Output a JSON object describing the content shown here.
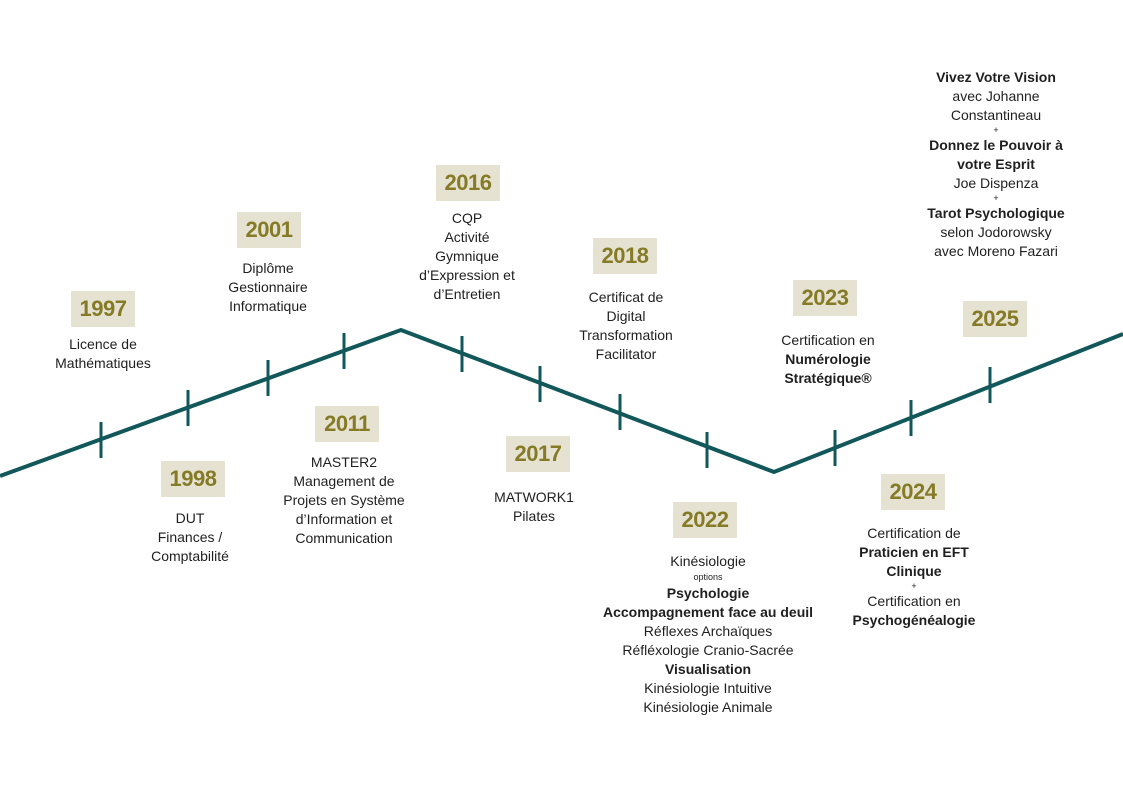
{
  "line_color": "#12575a",
  "year_bg": "#e6e2d2",
  "year_color": "#857b27",
  "entries": [
    {
      "year": "1997",
      "lines": [
        {
          "t": "Licence de"
        },
        {
          "t": "Mathématiques"
        }
      ]
    },
    {
      "year": "1998",
      "lines": [
        {
          "t": "DUT"
        },
        {
          "t": "Finances /"
        },
        {
          "t": "Comptabilité"
        }
      ]
    },
    {
      "year": "2001",
      "lines": [
        {
          "t": "Diplôme"
        },
        {
          "t": "Gestionnaire"
        },
        {
          "t": "Informatique"
        }
      ]
    },
    {
      "year": "2011",
      "lines": [
        {
          "t": "MASTER2"
        },
        {
          "t": "Management de"
        },
        {
          "t": "Projets en Système"
        },
        {
          "t": "d’Information et"
        },
        {
          "t": "Communication"
        }
      ]
    },
    {
      "year": "2016",
      "lines": [
        {
          "t": "CQP"
        },
        {
          "t": "Activité"
        },
        {
          "t": "Gymnique"
        },
        {
          "t": "d’Expression et"
        },
        {
          "t": "d’Entretien"
        }
      ]
    },
    {
      "year": "2017",
      "lines": [
        {
          "t": "MATWORK1"
        },
        {
          "t": "Pilates"
        }
      ]
    },
    {
      "year": "2018",
      "lines": [
        {
          "t": "Certificat de"
        },
        {
          "t": "Digital"
        },
        {
          "t": "Transformation"
        },
        {
          "t": "Facilitator"
        }
      ]
    },
    {
      "year": "2022",
      "lines": [
        {
          "t": "Kinésiologie"
        },
        {
          "t": "options",
          "s": "tiny"
        },
        {
          "t": "Psychologie",
          "s": "b"
        },
        {
          "t": "Accompagnement face au deuil",
          "s": "b"
        },
        {
          "t": "Réflexes Archaïques"
        },
        {
          "t": "Réfléxologie Cranio-Sacrée"
        },
        {
          "t": "Visualisation",
          "s": "b"
        },
        {
          "t": "Kinésiologie Intuitive"
        },
        {
          "t": "Kinésiologie Animale"
        }
      ]
    },
    {
      "year": "2023",
      "lines": [
        {
          "t": "Certification en"
        },
        {
          "t": "Numérologie",
          "s": "b"
        },
        {
          "t": "Stratégique®",
          "s": "b"
        }
      ]
    },
    {
      "year": "2024",
      "lines": [
        {
          "t": "Certification de"
        },
        {
          "t": "Praticien en EFT",
          "s": "b"
        },
        {
          "t": "Clinique",
          "s": "b"
        },
        {
          "t": "+",
          "s": "sep"
        },
        {
          "t": "Certification en"
        },
        {
          "t": "Psychogénéalogie",
          "s": "b"
        }
      ]
    },
    {
      "year": "2025",
      "lines": [
        {
          "t": "Vivez Votre Vision",
          "s": "b"
        },
        {
          "t": "avec Johanne"
        },
        {
          "t": "Constantineau"
        },
        {
          "t": "+",
          "s": "sep"
        },
        {
          "t": "Donnez le Pouvoir à",
          "s": "b"
        },
        {
          "t": "votre Esprit",
          "s": "b"
        },
        {
          "t": "Joe Dispenza"
        },
        {
          "t": "+",
          "s": "sep"
        },
        {
          "t": "Tarot Psychologique",
          "s": "b"
        },
        {
          "t": "selon Jodorowsky"
        },
        {
          "t": "avec Moreno Fazari"
        }
      ]
    }
  ]
}
